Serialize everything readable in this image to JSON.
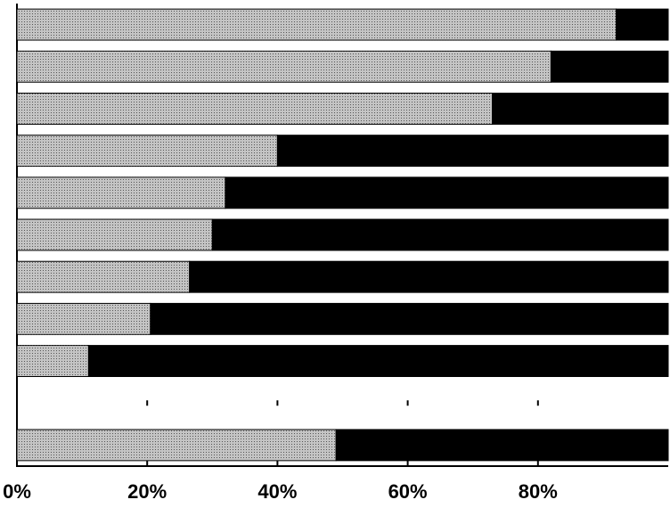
{
  "chart_data": {
    "type": "stacked-bar-horizontal",
    "categories": [
      null,
      null,
      null,
      null,
      null,
      null,
      null,
      null,
      null,
      null,
      null
    ],
    "series": [
      {
        "color": "#c4c4c4",
        "values": [
          92,
          82,
          73,
          40,
          32,
          30,
          26.5,
          20.5,
          11,
          null,
          49
        ]
      },
      {
        "color": "#000000",
        "values": [
          8,
          18,
          27,
          60,
          68,
          70,
          73.5,
          79.5,
          89,
          null,
          51
        ]
      }
    ],
    "xlim": [
      0,
      100
    ],
    "xticks": [
      {
        "value": 0,
        "label": "0%"
      },
      {
        "value": 20,
        "label": "20%"
      },
      {
        "value": 40,
        "label": "40%"
      },
      {
        "value": 60,
        "label": "60%"
      },
      {
        "value": 80,
        "label": "80%"
      }
    ]
  }
}
